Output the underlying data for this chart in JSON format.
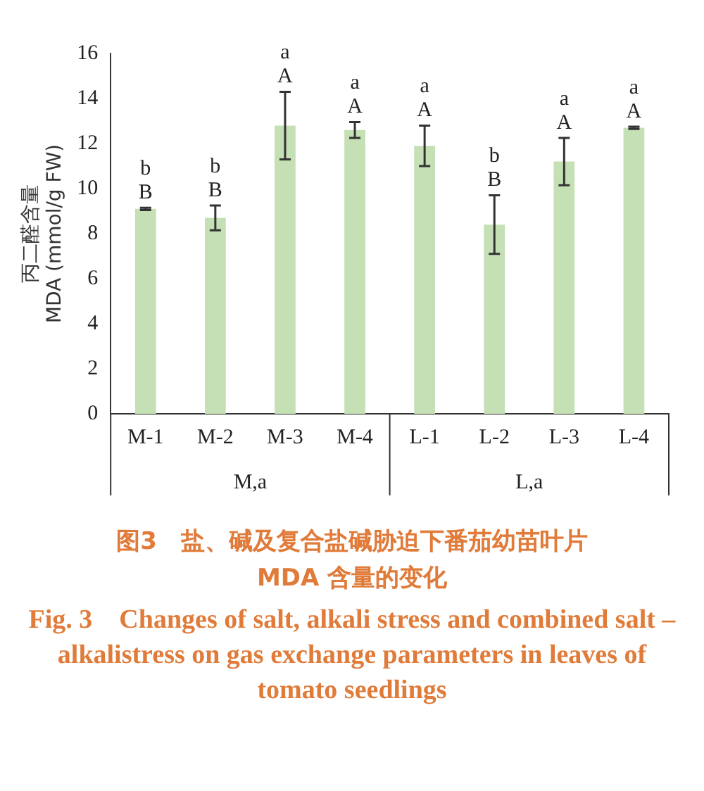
{
  "chart_data": {
    "type": "bar",
    "title": "图3　盐、碱及复合盐碱胁迫下番茄幼苗叶片 MDA 含量的变化",
    "subtitle": "Fig. 3　Changes of salt, alkali stress and combined salt – alkalistress on gas exchange parameters in leaves of tomato seedlings",
    "ylabel": "丙二醛含量\nMDA (mmol/g FW)",
    "categories": [
      "M-1",
      "M-2",
      "M-3",
      "M-4",
      "L-1",
      "L-2",
      "L-3",
      "L-4"
    ],
    "values": [
      9.1,
      8.7,
      12.8,
      12.6,
      11.9,
      8.4,
      11.2,
      12.7
    ],
    "errors": [
      0.05,
      0.55,
      1.5,
      0.35,
      0.9,
      1.3,
      1.05,
      0.05
    ],
    "color": "#c5e0b4",
    "ylim": [
      0,
      16
    ],
    "yticks": [
      0,
      2,
      4,
      6,
      8,
      10,
      12,
      14,
      16
    ],
    "grid": false,
    "legend": false,
    "annotations": [
      {
        "text": "B",
        "x": "M-1",
        "y": 9.15
      },
      {
        "text": "b",
        "x": "M-1",
        "y": 9.15
      },
      {
        "text": "B",
        "x": "M-2",
        "y": 9.25
      },
      {
        "text": "b",
        "x": "M-2",
        "y": 9.25
      },
      {
        "text": "A",
        "x": "M-3",
        "y": 14.3
      },
      {
        "text": "a",
        "x": "M-3",
        "y": 14.3
      },
      {
        "text": "A",
        "x": "M-4",
        "y": 12.95
      },
      {
        "text": "a",
        "x": "M-4",
        "y": 12.95
      },
      {
        "text": "A",
        "x": "L-1",
        "y": 12.8
      },
      {
        "text": "a",
        "x": "L-1",
        "y": 12.8
      },
      {
        "text": "B",
        "x": "L-2",
        "y": 9.7
      },
      {
        "text": "b",
        "x": "L-2",
        "y": 9.7
      },
      {
        "text": "A",
        "x": "L-3",
        "y": 12.25
      },
      {
        "text": "a",
        "x": "L-3",
        "y": 12.25
      },
      {
        "text": "A",
        "x": "L-4",
        "y": 12.75
      },
      {
        "text": "a",
        "x": "L-4",
        "y": 12.75
      },
      "M,a",
      "L,a"
    ]
  }
}
